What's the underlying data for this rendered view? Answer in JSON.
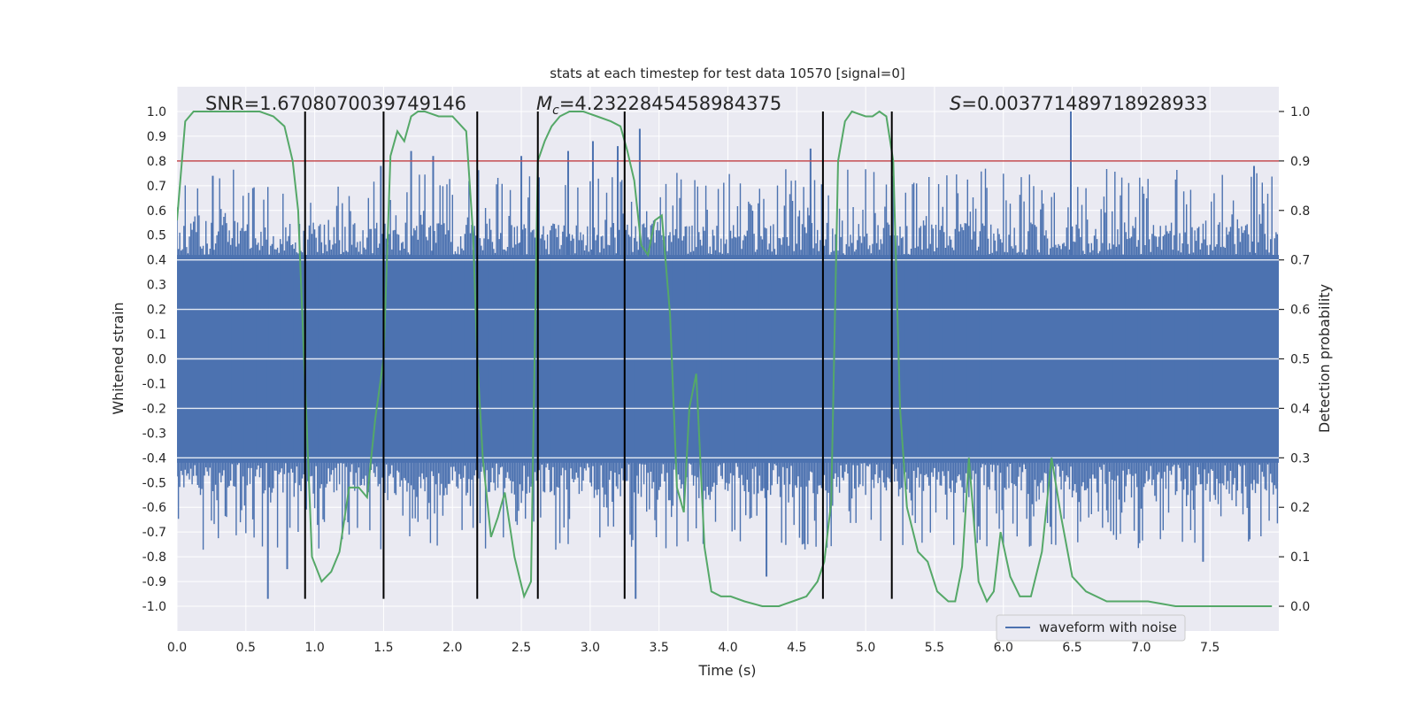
{
  "chart_data": {
    "type": "line",
    "title": "stats at each timestep for test data 10570 [signal=0]",
    "xlabel": "Time (s)",
    "ylabel": "Whitened strain",
    "y2label": "Detection probability",
    "xlim": [
      0.0,
      8.0
    ],
    "ylim": [
      -1.1,
      1.1
    ],
    "y2lim": [
      -0.05,
      1.05
    ],
    "x_ticks": [
      "0.0",
      "0.5",
      "1.0",
      "1.5",
      "2.0",
      "2.5",
      "3.0",
      "3.5",
      "4.0",
      "4.5",
      "5.0",
      "5.5",
      "6.0",
      "6.5",
      "7.0",
      "7.5"
    ],
    "x_tick_values": [
      0,
      0.5,
      1,
      1.5,
      2,
      2.5,
      3,
      3.5,
      4,
      4.5,
      5,
      5.5,
      6,
      6.5,
      7,
      7.5
    ],
    "y_ticks": [
      "1.0",
      "0.9",
      "0.8",
      "0.7",
      "0.6",
      "0.5",
      "0.4",
      "0.3",
      "0.2",
      "0.1",
      "0.0",
      "-0.1",
      "-0.2",
      "-0.3",
      "-0.4",
      "-0.5",
      "-0.6",
      "-0.7",
      "-0.8",
      "-0.9",
      "-1.0"
    ],
    "y_tick_values": [
      1.0,
      0.9,
      0.8,
      0.7,
      0.6,
      0.5,
      0.4,
      0.3,
      0.2,
      0.1,
      0.0,
      -0.1,
      -0.2,
      -0.3,
      -0.4,
      -0.5,
      -0.6,
      -0.7,
      -0.8,
      -0.9,
      -1.0
    ],
    "y2_ticks": [
      "1.0",
      "0.9",
      "0.8",
      "0.7",
      "0.6",
      "0.5",
      "0.4",
      "0.3",
      "0.2",
      "0.1",
      "0.0"
    ],
    "y2_tick_values": [
      1.0,
      0.9,
      0.8,
      0.7,
      0.6,
      0.5,
      0.4,
      0.3,
      0.2,
      0.1,
      0.0
    ],
    "annotations": {
      "snr": "SNR=1.6708070039749146",
      "mc_label": "M",
      "mc_sub": "c",
      "mc_value": "=4.2322845458984375",
      "s_label": "S",
      "s_value": "=0.003771489718928933"
    },
    "legend": {
      "label": "waveform with noise",
      "placement": "bottom-right"
    },
    "waveform": {
      "name": "waveform with noise",
      "color": "#4c72b0",
      "samples": 800,
      "core_amplitude": 0.42,
      "spike_peaks": [
        {
          "x": 0.26,
          "y": 0.74
        },
        {
          "x": 0.66,
          "y": -0.97
        },
        {
          "x": 0.8,
          "y": -0.85
        },
        {
          "x": 1.48,
          "y": 0.78
        },
        {
          "x": 1.7,
          "y": 0.84
        },
        {
          "x": 1.86,
          "y": 0.82
        },
        {
          "x": 2.5,
          "y": 0.82
        },
        {
          "x": 2.84,
          "y": 0.84
        },
        {
          "x": 3.02,
          "y": 0.88
        },
        {
          "x": 3.2,
          "y": 0.86
        },
        {
          "x": 3.33,
          "y": -0.97
        },
        {
          "x": 3.36,
          "y": 0.93
        },
        {
          "x": 4.28,
          "y": -0.88
        },
        {
          "x": 4.6,
          "y": 0.85
        },
        {
          "x": 6.49,
          "y": 1.0
        },
        {
          "x": 7.45,
          "y": -0.82
        },
        {
          "x": 7.82,
          "y": 0.78
        }
      ]
    },
    "detection_threshold": {
      "y2": 0.9,
      "color": "#c44e52"
    },
    "probability": {
      "name": "Detection probability",
      "color": "#55a868",
      "x": [
        0.0,
        0.06,
        0.12,
        0.2,
        0.3,
        0.4,
        0.5,
        0.6,
        0.7,
        0.78,
        0.84,
        0.88,
        0.93,
        0.98,
        1.05,
        1.12,
        1.18,
        1.25,
        1.32,
        1.38,
        1.44,
        1.5,
        1.55,
        1.6,
        1.65,
        1.7,
        1.75,
        1.8,
        1.9,
        2.0,
        2.1,
        2.15,
        2.18,
        2.22,
        2.28,
        2.33,
        2.38,
        2.45,
        2.52,
        2.57,
        2.62,
        2.67,
        2.72,
        2.78,
        2.85,
        2.95,
        3.05,
        3.15,
        3.22,
        3.27,
        3.32,
        3.37,
        3.42,
        3.47,
        3.52,
        3.58,
        3.63,
        3.68,
        3.72,
        3.77,
        3.83,
        3.88,
        3.95,
        4.02,
        4.12,
        4.25,
        4.37,
        4.47,
        4.57,
        4.65,
        4.7,
        4.75,
        4.8,
        4.85,
        4.9,
        5.0,
        5.05,
        5.1,
        5.15,
        5.2,
        5.25,
        5.3,
        5.38,
        5.45,
        5.52,
        5.6,
        5.65,
        5.7,
        5.75,
        5.82,
        5.88,
        5.93,
        5.98,
        6.05,
        6.12,
        6.2,
        6.28,
        6.35,
        6.42,
        6.5,
        6.6,
        6.75,
        6.9,
        7.05,
        7.25,
        7.5,
        7.75,
        7.95
      ],
      "y": [
        0.78,
        0.98,
        1.0,
        1.0,
        1.0,
        1.0,
        1.0,
        1.0,
        0.99,
        0.97,
        0.9,
        0.8,
        0.45,
        0.1,
        0.05,
        0.07,
        0.11,
        0.24,
        0.24,
        0.22,
        0.38,
        0.5,
        0.91,
        0.96,
        0.94,
        0.99,
        1.0,
        1.0,
        0.99,
        0.99,
        0.96,
        0.75,
        0.5,
        0.3,
        0.14,
        0.18,
        0.23,
        0.1,
        0.02,
        0.05,
        0.9,
        0.94,
        0.97,
        0.99,
        1.0,
        1.0,
        0.99,
        0.98,
        0.97,
        0.92,
        0.86,
        0.73,
        0.71,
        0.78,
        0.79,
        0.59,
        0.24,
        0.19,
        0.4,
        0.47,
        0.12,
        0.03,
        0.02,
        0.02,
        0.01,
        0.0,
        0.0,
        0.01,
        0.02,
        0.05,
        0.09,
        0.21,
        0.9,
        0.98,
        1.0,
        0.99,
        0.99,
        1.0,
        0.99,
        0.9,
        0.4,
        0.2,
        0.11,
        0.09,
        0.03,
        0.01,
        0.01,
        0.08,
        0.3,
        0.05,
        0.01,
        0.03,
        0.15,
        0.06,
        0.02,
        0.02,
        0.11,
        0.3,
        0.18,
        0.06,
        0.03,
        0.01,
        0.01,
        0.01,
        0.0,
        0.0,
        0.0,
        0.0
      ]
    },
    "event_lines": {
      "color": "#000000",
      "x": [
        0.93,
        1.5,
        2.18,
        2.62,
        3.25,
        4.69,
        5.19
      ],
      "y_top": 1.0,
      "y_bottom": -0.97
    }
  }
}
